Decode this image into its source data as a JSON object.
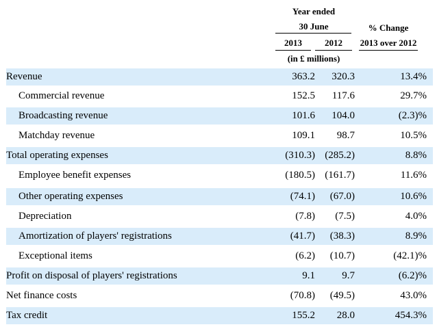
{
  "header": {
    "year_ended": "Year ended",
    "date": "30 June",
    "col_2013": "2013",
    "col_2012": "2012",
    "pct_change": "% Change",
    "compare": "2013 over 2012",
    "units": "(in £ millions)"
  },
  "rows": [
    {
      "label": "Revenue",
      "v2013": "363.2",
      "v2012": "320.3",
      "change": "13.4%",
      "indent": false,
      "shaded": true
    },
    {
      "label": "Commercial revenue",
      "v2013": "152.5",
      "v2012": "117.6",
      "change": "29.7%",
      "indent": true,
      "shaded": false
    },
    {
      "label": "Broadcasting revenue",
      "v2013": "101.6",
      "v2012": "104.0",
      "change": "(2.3)%",
      "indent": true,
      "shaded": true
    },
    {
      "label": "Matchday revenue",
      "v2013": "109.1",
      "v2012": "98.7",
      "change": "10.5%",
      "indent": true,
      "shaded": false
    },
    {
      "label": "Total operating expenses",
      "v2013": "(310.3)",
      "v2012": "(285.2)",
      "change": "8.8%",
      "indent": false,
      "shaded": true
    },
    {
      "label": "Employee benefit expenses",
      "v2013": "(180.5)",
      "v2012": "(161.7)",
      "change": "11.6%",
      "indent": true,
      "shaded": false
    },
    {
      "label": "Other operating expenses",
      "v2013": "(74.1)",
      "v2012": "(67.0)",
      "change": "10.6%",
      "indent": true,
      "shaded": true
    },
    {
      "label": "Depreciation",
      "v2013": "(7.8)",
      "v2012": "(7.5)",
      "change": "4.0%",
      "indent": true,
      "shaded": false
    },
    {
      "label": "Amortization of players' registrations",
      "v2013": "(41.7)",
      "v2012": "(38.3)",
      "change": "8.9%",
      "indent": true,
      "shaded": true
    },
    {
      "label": "Exceptional items",
      "v2013": "(6.2)",
      "v2012": "(10.7)",
      "change": "(42.1)%",
      "indent": true,
      "shaded": false
    },
    {
      "label": "Profit on disposal of players' registrations",
      "v2013": "9.1",
      "v2012": "9.7",
      "change": "(6.2)%",
      "indent": false,
      "shaded": true
    },
    {
      "label": "Net finance costs",
      "v2013": "(70.8)",
      "v2012": "(49.5)",
      "change": "43.0%",
      "indent": false,
      "shaded": false
    },
    {
      "label": "Tax credit",
      "v2013": "155.2",
      "v2012": "28.0",
      "change": "454.3%",
      "indent": false,
      "shaded": true
    }
  ]
}
